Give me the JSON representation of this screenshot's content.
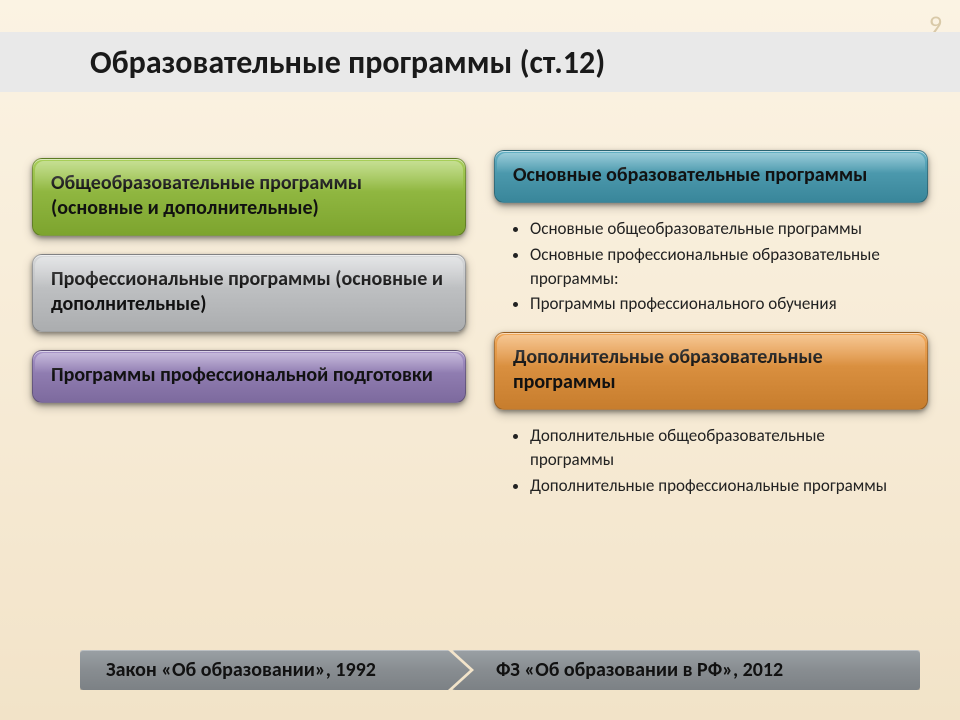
{
  "slide_number": "9",
  "title": "Образовательные программы (ст.12)",
  "colors": {
    "green": "#8fb640",
    "gray": "#bdbfc1",
    "purple": "#8f7cb0",
    "teal": "#4b98ac",
    "orange": "#d98f3f",
    "footer_bg": "#8b9094",
    "body_text": "#1a1a1a"
  },
  "fontsize": {
    "title": 32,
    "card": 20,
    "bullet": 17,
    "footer": 20
  },
  "left_cards": [
    {
      "key": "left-card-1",
      "text": " Общеобразовательные программы (основные и дополнительные)",
      "color": "green"
    },
    {
      "key": "left-card-2",
      "text": "Профессиональные программы (основные и дополнительные)",
      "color": "gray"
    },
    {
      "key": "left-card-3",
      "text": "Программы профессиональной подготовки",
      "color": "purple"
    }
  ],
  "right_groups": [
    {
      "key": "right-group-1",
      "header": " Основные образовательные программы",
      "color": "teal",
      "items": [
        "Основные общеобразовательные программы",
        "Основные профессиональные образовательные программы:",
        "Программы профессионального обучения"
      ]
    },
    {
      "key": "right-group-2",
      "header": " Дополнительные образовательные программы",
      "color": "orange",
      "items": [
        "Дополнительные общеобразовательные программы",
        "Дополнительные профессиональные программы"
      ]
    }
  ],
  "footer": {
    "left": "Закон «Об образовании», 1992",
    "right": "ФЗ «Об образовании в РФ», 2012"
  }
}
